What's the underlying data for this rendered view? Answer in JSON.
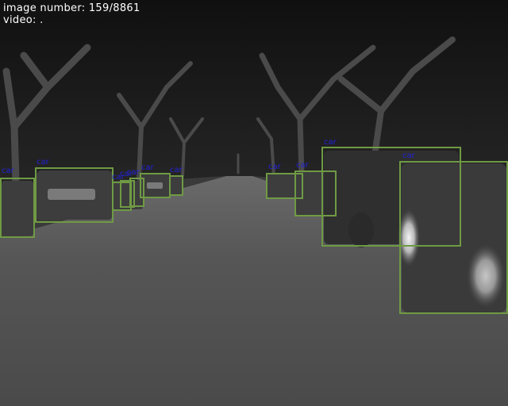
{
  "overlay": {
    "image_number_label": "image number:",
    "image_number_value": "159/8861",
    "video_label": "video:",
    "video_value": "."
  },
  "colors": {
    "box": "#6f9a44",
    "label": "#2323d8",
    "hud_text": "#ffffff"
  },
  "detections": [
    {
      "label": "car"
    },
    {
      "label": "car"
    },
    {
      "label": "car"
    },
    {
      "label": "car"
    },
    {
      "label": "car"
    },
    {
      "label": "car"
    },
    {
      "label": "car"
    },
    {
      "label": "car"
    },
    {
      "label": "car"
    },
    {
      "label": "car"
    },
    {
      "label": "car"
    }
  ]
}
